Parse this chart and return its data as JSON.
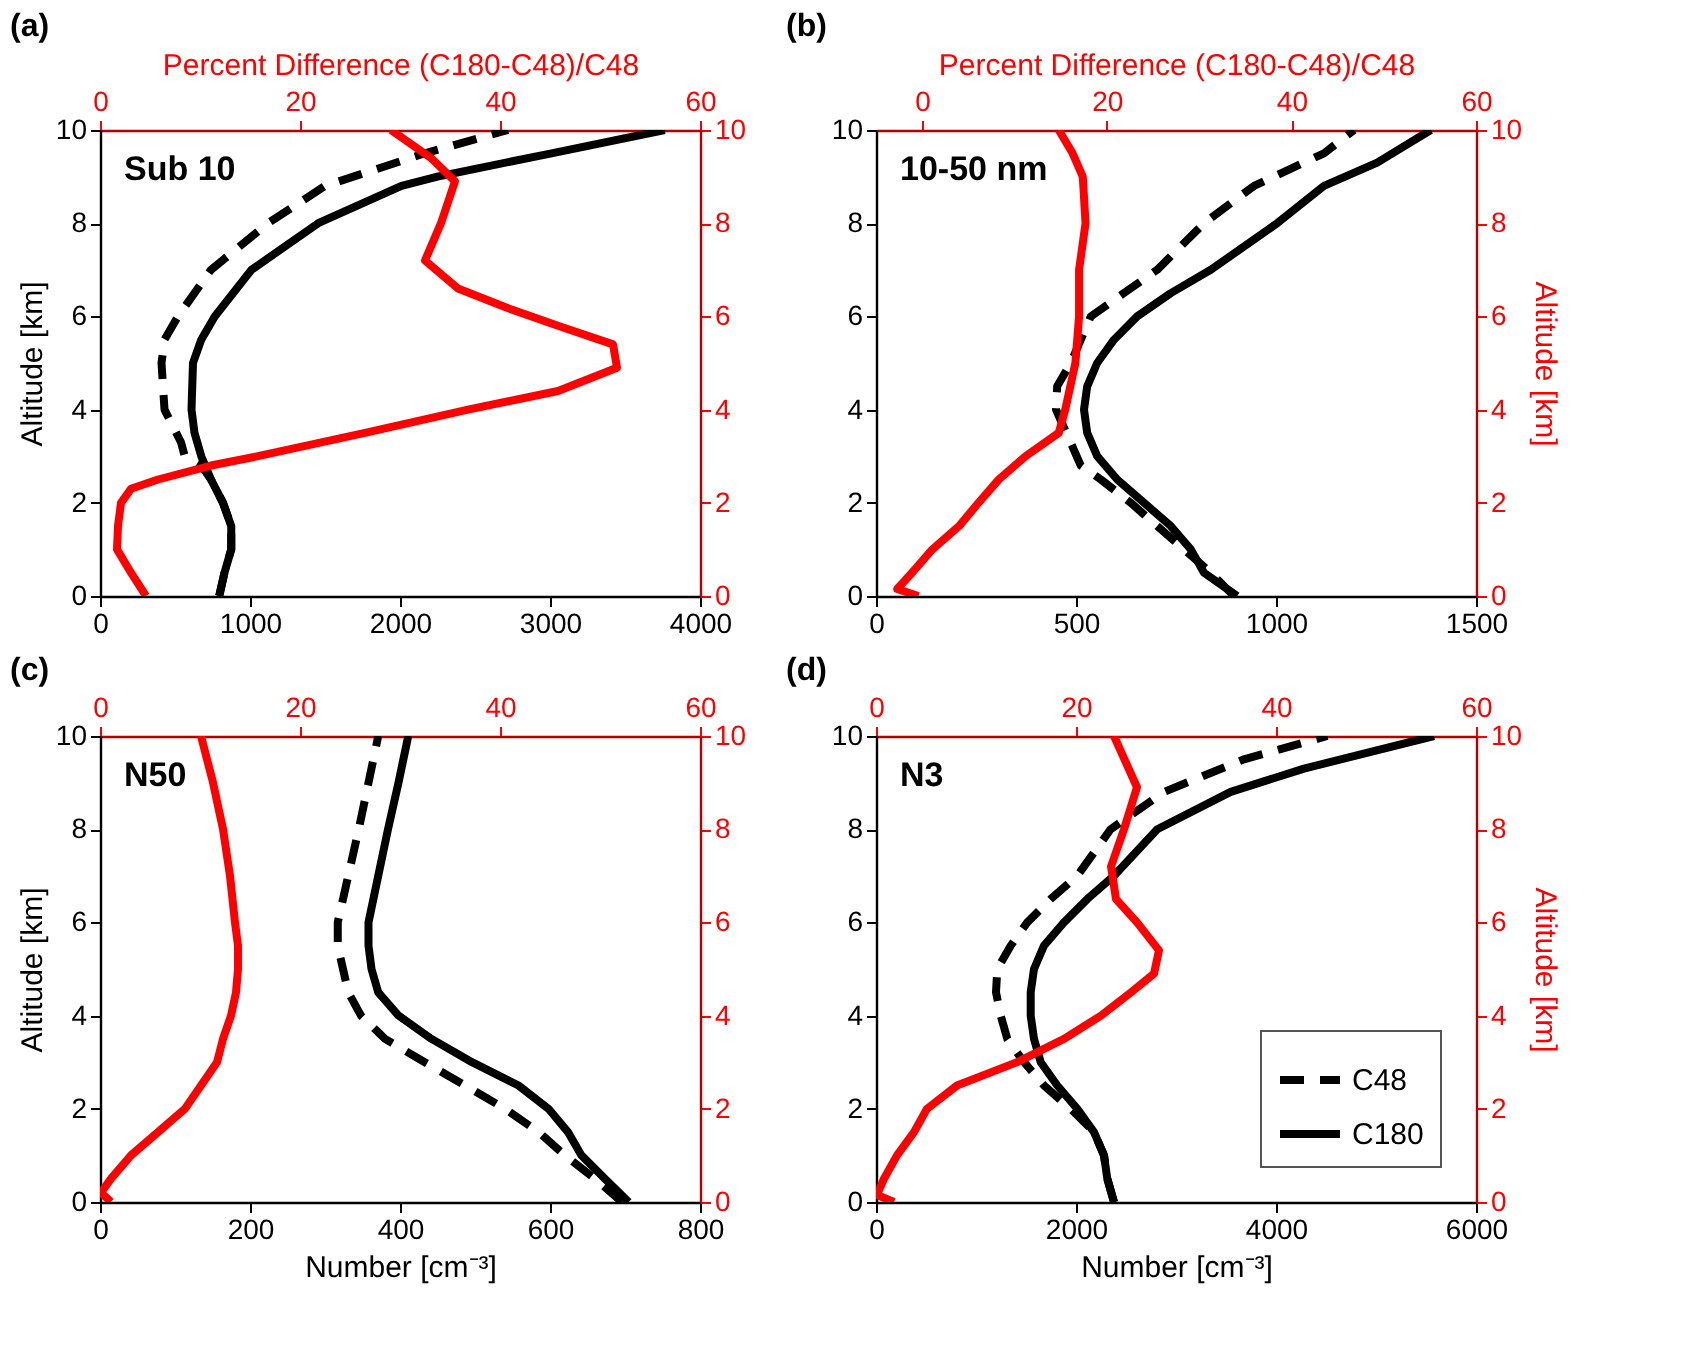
{
  "chart_data": [
    {
      "type": "line",
      "title": "(a)",
      "x2label": "Percent Difference (C180-C48)/C48",
      "ylabel": "Altitude [km]",
      "annotations": [
        "Sub 10"
      ],
      "xlim": [
        0,
        4000
      ],
      "xticks": [
        0,
        1000,
        2000,
        3000,
        4000
      ],
      "x2lim": [
        0,
        60
      ],
      "x2ticks": [
        0,
        20,
        40,
        60
      ],
      "ylim": [
        0,
        10
      ],
      "yticks": [
        0,
        2,
        4,
        6,
        8,
        10
      ],
      "y2lim": [
        0,
        10
      ],
      "y2ticks": [
        0,
        2,
        4,
        6,
        8,
        10
      ],
      "series": [
        {
          "color": "#000000",
          "line_style": "dashed",
          "x": [
            795,
            830,
            875,
            875,
            820,
            740,
            675,
            565,
            540,
            430,
            410,
            430,
            520,
            740,
            1120,
            1500,
            2165,
            2720
          ],
          "values": [
            0,
            0.5,
            1,
            1.5,
            2,
            2.5,
            2.8,
            3,
            3.3,
            4,
            5,
            5.5,
            6,
            7,
            8,
            8.8,
            9.5,
            10
          ]
        },
        {
          "color": "#000000",
          "line_style": "solid",
          "x": [
            795,
            830,
            875,
            875,
            820,
            740,
            675,
            630,
            610,
            620,
            675,
            765,
            1010,
            1455,
            2010,
            2250,
            3010,
            3765
          ],
          "values": [
            0,
            0.5,
            1,
            1.5,
            2,
            2.5,
            3,
            3.5,
            4,
            5,
            5.5,
            6,
            7,
            8,
            8.8,
            9,
            9.5,
            10
          ]
        },
        {
          "color": "#ff0000",
          "line_style": "solid",
          "axis": "x2",
          "x": [
            4.6,
            3.1,
            1.7,
            1.8,
            2.1,
            3.1,
            5.8,
            11.1,
            15.8,
            26.5,
            36.8,
            45.8,
            51.7,
            51.3,
            45.8,
            40.5,
            35.8,
            32.5,
            34.1,
            35.5,
            33.1,
            29.1
          ],
          "values": [
            0,
            0.5,
            1,
            1.5,
            2,
            2.3,
            2.5,
            2.8,
            3,
            3.5,
            4,
            4.4,
            4.9,
            5.4,
            5.8,
            6.2,
            6.6,
            7.2,
            8,
            8.9,
            9.4,
            10
          ]
        }
      ]
    },
    {
      "type": "line",
      "title": "(b)",
      "x2label": "Percent Difference (C180-C48)/C48",
      "y2label": "Altitude [km]",
      "annotations": [
        "10-50 nm"
      ],
      "xlim": [
        0,
        1500
      ],
      "xticks": [
        0,
        500,
        1000,
        1500
      ],
      "x2lim": [
        -5,
        60
      ],
      "x2ticks": [
        0,
        20,
        40,
        60
      ],
      "ylim": [
        0,
        10
      ],
      "yticks": [
        0,
        2,
        4,
        6,
        8,
        10
      ],
      "y2lim": [
        0,
        10
      ],
      "y2ticks": [
        0,
        2,
        4,
        6,
        8,
        10
      ],
      "series": [
        {
          "color": "#000000",
          "line_style": "dashed",
          "x": [
            895,
            837,
            770,
            703,
            637,
            562,
            512,
            450,
            453,
            487,
            512,
            537,
            620,
            703,
            820,
            945,
            1120,
            1195
          ],
          "values": [
            0,
            0.5,
            1,
            1.5,
            2,
            2.5,
            2.8,
            4,
            4.5,
            5,
            5.5,
            6,
            6.5,
            7,
            8,
            8.8,
            9.5,
            10
          ]
        },
        {
          "color": "#000000",
          "line_style": "solid",
          "x": [
            903,
            820,
            787,
            737,
            670,
            603,
            553,
            528,
            520,
            528,
            553,
            595,
            653,
            737,
            837,
            1003,
            1120,
            1253,
            1387
          ],
          "values": [
            0,
            0.5,
            1,
            1.5,
            2,
            2.5,
            3,
            3.5,
            4,
            4.5,
            5,
            5.5,
            6,
            6.5,
            7,
            8,
            8.8,
            9.3,
            10
          ]
        },
        {
          "color": "#ff0000",
          "line_style": "solid",
          "axis": "x2",
          "x": [
            -0.4,
            -2.7,
            -1.1,
            1.1,
            4.0,
            6.1,
            8.3,
            11.2,
            14.8,
            15.5,
            16.6,
            17.0,
            17.0,
            17.7,
            17.4,
            16.3,
            14.8
          ],
          "values": [
            0,
            0.15,
            0.5,
            1,
            1.5,
            2,
            2.5,
            3,
            3.5,
            4,
            5,
            6,
            7,
            8,
            9,
            9.5,
            10
          ]
        }
      ]
    },
    {
      "type": "line",
      "title": "(c)",
      "xlabel": "Number [cm⁻³]",
      "ylabel": "Altitude [km]",
      "annotations": [
        "N50"
      ],
      "xlim": [
        0,
        800
      ],
      "xticks": [
        0,
        200,
        400,
        600,
        800
      ],
      "x2lim": [
        0,
        60
      ],
      "x2ticks": [
        0,
        20,
        40,
        60
      ],
      "ylim": [
        0,
        10
      ],
      "yticks": [
        0,
        2,
        4,
        6,
        8,
        10
      ],
      "y2lim": [
        0,
        10
      ],
      "y2ticks": [
        0,
        2,
        4,
        6,
        8,
        10
      ],
      "series": [
        {
          "color": "#000000",
          "line_style": "dashed",
          "x": [
            696,
            660,
            620,
            585,
            540,
            487,
            433,
            380,
            348,
            331,
            324,
            317,
            317,
            331,
            345,
            358,
            371
          ],
          "values": [
            0,
            0.5,
            1,
            1.5,
            2,
            2.5,
            3,
            3.5,
            4,
            4.5,
            5,
            5.5,
            6,
            7,
            8,
            9,
            10
          ]
        },
        {
          "color": "#000000",
          "line_style": "solid",
          "x": [
            705,
            673,
            642,
            624,
            598,
            558,
            496,
            442,
            398,
            371,
            362,
            358,
            358,
            371,
            384,
            398,
            411
          ],
          "values": [
            0,
            0.5,
            1,
            1.5,
            2,
            2.5,
            3,
            3.5,
            4,
            4.5,
            5,
            5.5,
            6,
            7,
            8,
            9,
            10
          ]
        },
        {
          "color": "#ff0000",
          "line_style": "solid",
          "axis": "x2",
          "x": [
            1.1,
            0.1,
            1.1,
            3.1,
            5.8,
            8.5,
            10.1,
            11.7,
            12.3,
            13.1,
            13.6,
            13.8,
            13.8,
            13.5,
            13.0,
            12.3,
            11.3,
            10.1
          ],
          "values": [
            0,
            0.2,
            0.5,
            1,
            1.5,
            2,
            2.5,
            3,
            3.5,
            4,
            4.5,
            5,
            5.5,
            6,
            7,
            8,
            9,
            10
          ]
        }
      ]
    },
    {
      "type": "line",
      "title": "(d)",
      "xlabel": "Number [cm⁻³]",
      "y2label": "Altitude [km]",
      "annotations": [
        "N3"
      ],
      "legend": "bottom right",
      "xlim": [
        0,
        6000
      ],
      "xticks": [
        0,
        2000,
        4000,
        6000
      ],
      "x2lim": [
        0,
        60
      ],
      "x2ticks": [
        0,
        20,
        40,
        60
      ],
      "ylim": [
        0,
        10
      ],
      "yticks": [
        0,
        2,
        4,
        6,
        8,
        10
      ],
      "y2lim": [
        0,
        10
      ],
      "y2ticks": [
        0,
        2,
        4,
        6,
        8,
        10
      ],
      "series": [
        {
          "name": "C48",
          "color": "#000000",
          "line_style": "dashed",
          "x": [
            2380,
            2313,
            2280,
            2180,
            1947,
            1680,
            1480,
            1313,
            1247,
            1200,
            1213,
            1347,
            1513,
            1747,
            2013,
            2347,
            2880,
            3680,
            4513
          ],
          "values": [
            0,
            0.5,
            1,
            1.5,
            2,
            2.5,
            3,
            3.5,
            4,
            4.5,
            5,
            5.5,
            6,
            6.5,
            7,
            8,
            8.8,
            9.5,
            10
          ]
        },
        {
          "name": "C180",
          "color": "#000000",
          "line_style": "solid",
          "x": [
            2380,
            2313,
            2280,
            2180,
            2013,
            1813,
            1647,
            1580,
            1547,
            1547,
            1580,
            1680,
            1880,
            2113,
            2380,
            2813,
            3547,
            4280,
            5580
          ],
          "values": [
            0,
            0.5,
            1,
            1.5,
            2,
            2.5,
            3,
            3.5,
            4,
            4.5,
            5,
            5.5,
            6,
            6.5,
            7,
            8,
            8.8,
            9.3,
            10
          ]
        },
        {
          "color": "#ff0000",
          "line_style": "solid",
          "axis": "x2",
          "x": [
            1.8,
            0.1,
            0.8,
            2.1,
            3.8,
            5.1,
            8.1,
            14.1,
            18.8,
            22.5,
            25.5,
            27.8,
            28.3,
            26.1,
            24.0,
            23.5,
            24.8,
            26.1,
            23.8
          ],
          "values": [
            0,
            0.15,
            0.5,
            1,
            1.5,
            2,
            2.5,
            3,
            3.5,
            4,
            4.5,
            4.9,
            5.4,
            6,
            6.5,
            7.2,
            8,
            8.9,
            10
          ]
        }
      ]
    }
  ]
}
